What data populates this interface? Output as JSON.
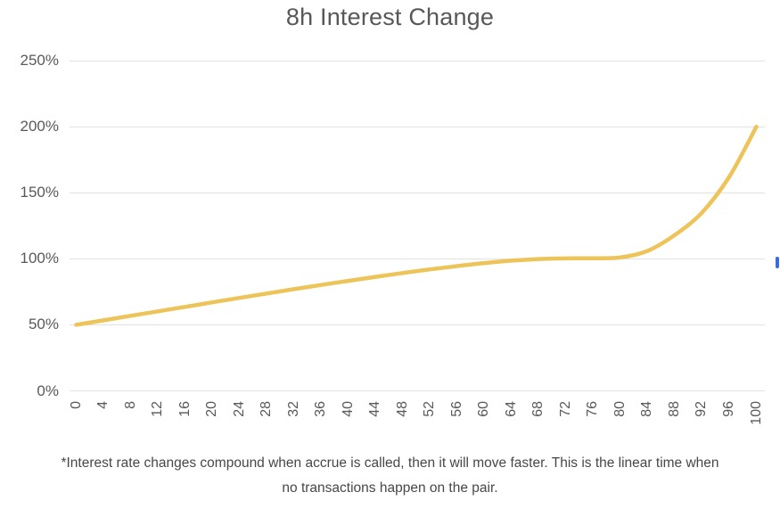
{
  "title": "8h Interest Change",
  "footnote_lines": [
    "*Interest rate changes compound when accrue is called, then it will move faster. This is the linear time when",
    "no transactions happen on the pair."
  ],
  "colors": {
    "line": "#ECC459",
    "gridline": "#E2E2E2",
    "axis_label": "#595959",
    "title_text": "#585858",
    "footnote_text": "#474747",
    "cursor_bar": "#3B6BD8",
    "background": "#FFFFFF"
  },
  "chart_data": {
    "type": "line",
    "title": "8h Interest Change",
    "x": [
      0,
      4,
      8,
      12,
      16,
      20,
      24,
      28,
      32,
      36,
      40,
      44,
      48,
      52,
      56,
      60,
      64,
      68,
      72,
      76,
      80,
      84,
      88,
      92,
      96,
      100
    ],
    "series": [
      {
        "name": "8h Interest Change",
        "values": [
          50,
          53.4,
          56.8,
          60.2,
          63.6,
          67,
          70.4,
          73.7,
          77,
          80.2,
          83.3,
          86.3,
          89.2,
          92,
          94.5,
          96.8,
          98.6,
          99.8,
          100.3,
          100.4,
          101,
          106,
          118,
          135,
          162,
          200
        ]
      }
    ],
    "xlabel": "",
    "ylabel": "",
    "xlim": [
      0,
      100
    ],
    "ylim": [
      0,
      250
    ],
    "y_ticks": [
      0,
      50,
      100,
      150,
      200,
      250
    ],
    "y_tick_suffix": "%",
    "x_tick_rotation": -90,
    "grid": "horizontal",
    "legend": "none",
    "line_width": 4.5
  }
}
